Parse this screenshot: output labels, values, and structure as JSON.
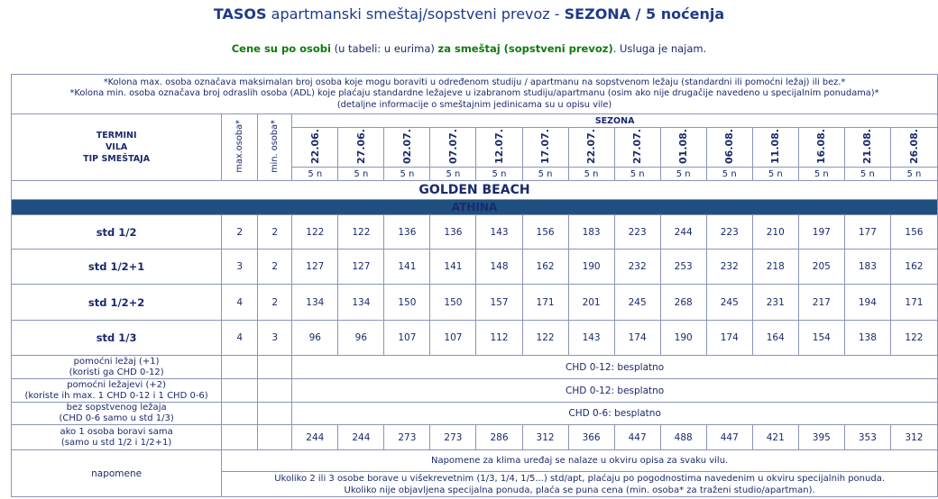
{
  "title": {
    "part1": "TASOS",
    "part2": " apartmanski smeštaj/sopstveni prevoz - ",
    "part3": "SEZONA / 5 noćenja"
  },
  "subtitle": {
    "part1": "Cene su po osobi",
    "part2": " (u tabeli: u eurima) ",
    "part3": "za smeštaj (sopstveni prevoz)",
    "part4": ". Usluga je najam."
  },
  "notes": {
    "line1": "*Kolona max. osoba označava maksimalan broj osoba koje mogu boraviti u određenom studiju / apartmanu na sopstvenom ležaju (standardni ili pomoćni ležaj) ili bez.*",
    "line2": "*Kolona min. osoba označava broj odraslih osoba (ADL) koje plaćaju standardne ležajeve u izabranom studiju/apartmanu (osim ako nije drugačije navedeno u specijalnim ponudama)*",
    "line3": "(detaljne informacije o smeštajnim jedinicama su u opisu vile)"
  },
  "header": {
    "termini": "TERMINI",
    "vila": "VILA",
    "tip": "TIP SMEŠTAJA",
    "max_osoba": "max.osoba*",
    "min_osoba": "min. osoba*",
    "sezona": "SEZONA",
    "dates": [
      "22.06.",
      "27.06.",
      "02.07.",
      "07.07.",
      "12.07.",
      "17.07.",
      "22.07.",
      "27.07.",
      "01.08.",
      "06.08.",
      "11.08.",
      "16.08.",
      "21.08.",
      "26.08."
    ],
    "nights": [
      "5 n",
      "5 n",
      "5 n",
      "5 n",
      "5 n",
      "5 n",
      "5 n",
      "5 n",
      "5 n",
      "5 n",
      "5 n",
      "5 n",
      "5 n",
      "5 n"
    ]
  },
  "hotel": "GOLDEN BEACH",
  "villa": "ATHINA",
  "rows": [
    {
      "type": "std 1/2",
      "max": "2",
      "min": "2",
      "prices": [
        "122",
        "122",
        "136",
        "136",
        "143",
        "156",
        "183",
        "223",
        "244",
        "223",
        "210",
        "197",
        "177",
        "156"
      ]
    },
    {
      "type": "std 1/2+1",
      "max": "3",
      "min": "2",
      "prices": [
        "127",
        "127",
        "141",
        "141",
        "148",
        "162",
        "190",
        "232",
        "253",
        "232",
        "218",
        "205",
        "183",
        "162"
      ]
    },
    {
      "type": "std 1/2+2",
      "max": "4",
      "min": "2",
      "prices": [
        "134",
        "134",
        "150",
        "150",
        "157",
        "171",
        "201",
        "245",
        "268",
        "245",
        "231",
        "217",
        "194",
        "171"
      ]
    },
    {
      "type": "std 1/3",
      "max": "4",
      "min": "3",
      "prices": [
        "96",
        "96",
        "107",
        "107",
        "112",
        "122",
        "143",
        "174",
        "190",
        "174",
        "164",
        "154",
        "138",
        "122"
      ]
    }
  ],
  "extras": [
    {
      "label1": "pomoćni ležaj (+1)",
      "label2": "(koristi ga CHD 0-12)",
      "value": "CHD 0-12: besplatno"
    },
    {
      "label1": "pomoćni ležajevi (+2)",
      "label2": "(koriste ih max. 1 CHD 0-12 i 1 CHD 0-6)",
      "value": "CHD 0-12: besplatno"
    },
    {
      "label1": "bez sopstvenog ležaja",
      "label2": "(CHD 0-6 samo u std 1/3)",
      "value": "CHD 0-6: besplatno"
    }
  ],
  "single": {
    "label1": "ako 1 osoba boravi sama",
    "label2": "(samo u std 1/2 i 1/2+1)",
    "prices": [
      "244",
      "244",
      "273",
      "273",
      "286",
      "312",
      "366",
      "447",
      "488",
      "447",
      "421",
      "395",
      "353",
      "312"
    ]
  },
  "napomene": {
    "label": "napomene",
    "line1": "Napomene za klima uređaj se nalaze u okviru opisa za svaku vilu.",
    "line2": "Ukoliko 2 ili 3 osobe borave u višekrevetnim (1/3, 1/4, 1/5...) std/apt, plaćaju po pogodnostima navedenim u okviru specijalnih ponuda.",
    "line3": "Ukoliko nije objavljena specijalna ponuda, plaća se puna cena (min. osoba* za traženi studio/apartman)."
  }
}
